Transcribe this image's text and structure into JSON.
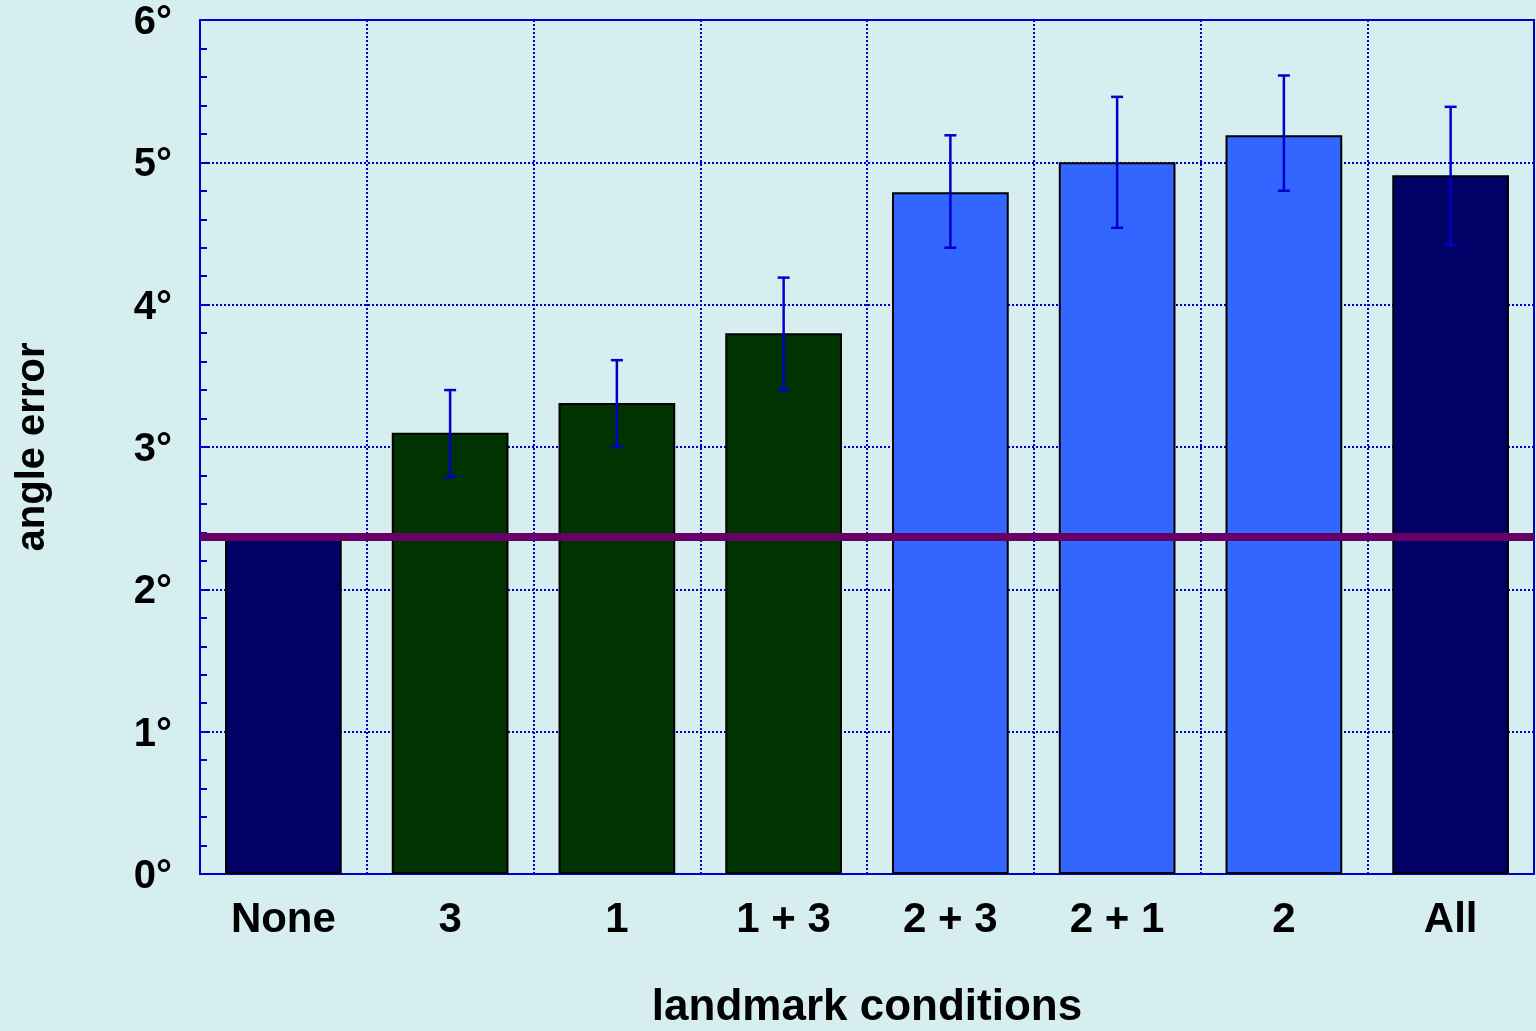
{
  "chart_data": {
    "type": "bar",
    "xlabel": "landmark conditions",
    "ylabel": "angle error",
    "categories": [
      "None",
      "3",
      "1",
      "1 + 3",
      "2 + 3",
      "2 + 1",
      "2",
      "All"
    ],
    "values": [
      2.37,
      3.1,
      3.31,
      3.8,
      4.79,
      5.0,
      5.19,
      4.91
    ],
    "colors": [
      "#000066",
      "#003300",
      "#003300",
      "#003300",
      "#3366ff",
      "#3366ff",
      "#3366ff",
      "#000066"
    ],
    "errors": [
      null,
      [
        2.79,
        3.4
      ],
      [
        3.0,
        3.61
      ],
      [
        3.4,
        4.19
      ],
      [
        4.4,
        5.19
      ],
      [
        4.54,
        5.46
      ],
      [
        4.8,
        5.61
      ],
      [
        4.42,
        5.39
      ]
    ],
    "ylim": [
      0,
      6
    ],
    "yticks": [
      {
        "value": 0,
        "label": "0°"
      },
      {
        "value": 1,
        "label": "1°"
      },
      {
        "value": 2,
        "label": "2°"
      },
      {
        "value": 3,
        "label": "3°"
      },
      {
        "value": 4,
        "label": "4°"
      },
      {
        "value": 5,
        "label": "5°"
      },
      {
        "value": 6,
        "label": "6°"
      }
    ],
    "ref_lines": [
      {
        "axis": "y",
        "value": 2.37,
        "color": "#660066"
      }
    ],
    "grid": true
  }
}
